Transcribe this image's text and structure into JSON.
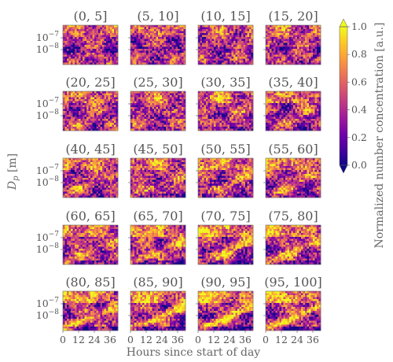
{
  "chart_data": {
    "type": "heatmap",
    "panel_titles": [
      "(0, 5]",
      "(5, 10]",
      "(10, 15]",
      "(15, 20]",
      "(20, 25]",
      "(25, 30]",
      "(30, 35]",
      "(35, 40]",
      "(40, 45]",
      "(45, 50]",
      "(50, 55]",
      "(55, 60]",
      "(60, 65]",
      "(65, 70]",
      "(70, 75]",
      "(75, 80]",
      "(80, 85]",
      "(85, 90]",
      "(90, 95]",
      "(95, 100]"
    ],
    "rows": 5,
    "cols": 4,
    "xlabel": "Hours since start of day",
    "ylabel": "D_p [m]",
    "ylabel_main": "D",
    "ylabel_sub": "p",
    "ylabel_unit": " [m]",
    "xticks": [
      0,
      12,
      24,
      36
    ],
    "xlim": [
      0,
      42
    ],
    "yticks": [
      {
        "base": "10",
        "exp": "−7",
        "value": 1e-07
      },
      {
        "base": "10",
        "exp": "−8",
        "value": 1e-08
      }
    ],
    "yscale": "log",
    "colorbar": {
      "label": "Normalized number concentration [a.u.]",
      "ticks": [
        "0.0",
        "0.2",
        "0.4",
        "0.6",
        "0.8",
        "1.0"
      ],
      "range": [
        0,
        1
      ],
      "extend": "both",
      "colormap": "plasma",
      "stops": [
        "#0d0887",
        "#46039f",
        "#7201a8",
        "#9c179e",
        "#bd3786",
        "#d8576b",
        "#ed7953",
        "#fb9f3a",
        "#fdca26",
        "#f0f921"
      ]
    }
  }
}
